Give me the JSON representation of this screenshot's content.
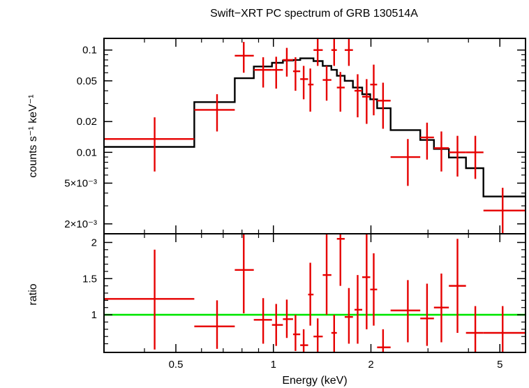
{
  "title": "Swift−XRT PC spectrum of GRB 130514A",
  "xlabel": "Energy (keV)",
  "colors": {
    "data": "#e60000",
    "model": "#000000",
    "unity": "#00e600",
    "frame": "#000000"
  },
  "chart_data": [
    {
      "type": "scatter",
      "panel": "spectrum",
      "xscale": "log",
      "yscale": "log",
      "xlim": [
        0.3,
        6.0
      ],
      "ylim": [
        0.0016,
        0.13
      ],
      "ylabel": "counts s⁻¹ keV⁻¹",
      "yticks": [
        {
          "value": 0.1,
          "label": "0.1"
        },
        {
          "value": 0.05,
          "label": "0.05"
        },
        {
          "value": 0.02,
          "label": "0.02"
        },
        {
          "value": 0.01,
          "label": "0.01"
        },
        {
          "value": 0.005,
          "label": "5×10⁻³"
        },
        {
          "value": 0.002,
          "label": "2×10⁻³"
        }
      ],
      "series": [
        {
          "role": "data",
          "points": [
            {
              "x": 0.43,
              "xlo": 0.3,
              "xhi": 0.57,
              "y": 0.0135,
              "ylo": 0.0065,
              "yhi": 0.022
            },
            {
              "x": 0.67,
              "xlo": 0.57,
              "xhi": 0.76,
              "y": 0.026,
              "ylo": 0.016,
              "yhi": 0.037
            },
            {
              "x": 0.81,
              "xlo": 0.76,
              "xhi": 0.87,
              "y": 0.088,
              "ylo": 0.06,
              "yhi": 0.12
            },
            {
              "x": 0.93,
              "xlo": 0.87,
              "xhi": 0.99,
              "y": 0.064,
              "ylo": 0.043,
              "yhi": 0.085
            },
            {
              "x": 1.02,
              "xlo": 0.99,
              "xhi": 1.07,
              "y": 0.064,
              "ylo": 0.042,
              "yhi": 0.086
            },
            {
              "x": 1.1,
              "xlo": 1.07,
              "xhi": 1.15,
              "y": 0.08,
              "ylo": 0.055,
              "yhi": 0.105
            },
            {
              "x": 1.17,
              "xlo": 1.15,
              "xhi": 1.21,
              "y": 0.062,
              "ylo": 0.04,
              "yhi": 0.085
            },
            {
              "x": 1.24,
              "xlo": 1.21,
              "xhi": 1.28,
              "y": 0.052,
              "ylo": 0.033,
              "yhi": 0.07
            },
            {
              "x": 1.3,
              "xlo": 1.28,
              "xhi": 1.33,
              "y": 0.046,
              "ylo": 0.025,
              "yhi": 0.066
            },
            {
              "x": 1.37,
              "xlo": 1.33,
              "xhi": 1.42,
              "y": 0.1,
              "ylo": 0.07,
              "yhi": 0.13
            },
            {
              "x": 1.46,
              "xlo": 1.42,
              "xhi": 1.51,
              "y": 0.051,
              "ylo": 0.032,
              "yhi": 0.07
            },
            {
              "x": 1.54,
              "xlo": 1.51,
              "xhi": 1.57,
              "y": 0.1,
              "ylo": 0.07,
              "yhi": 0.13
            },
            {
              "x": 1.61,
              "xlo": 1.57,
              "xhi": 1.66,
              "y": 0.043,
              "ylo": 0.025,
              "yhi": 0.061
            },
            {
              "x": 1.71,
              "xlo": 1.66,
              "xhi": 1.76,
              "y": 0.1,
              "ylo": 0.07,
              "yhi": 0.13
            },
            {
              "x": 1.82,
              "xlo": 1.78,
              "xhi": 1.88,
              "y": 0.04,
              "ylo": 0.022,
              "yhi": 0.058
            },
            {
              "x": 1.94,
              "xlo": 1.88,
              "xhi": 1.99,
              "y": 0.035,
              "ylo": 0.019,
              "yhi": 0.052
            },
            {
              "x": 2.04,
              "xlo": 1.99,
              "xhi": 2.09,
              "y": 0.046,
              "ylo": 0.023,
              "yhi": 0.072
            },
            {
              "x": 2.18,
              "xlo": 2.09,
              "xhi": 2.3,
              "y": 0.032,
              "ylo": 0.017,
              "yhi": 0.048
            },
            {
              "x": 2.6,
              "xlo": 2.3,
              "xhi": 2.84,
              "y": 0.009,
              "ylo": 0.0047,
              "yhi": 0.0135
            },
            {
              "x": 2.98,
              "xlo": 2.84,
              "xhi": 3.13,
              "y": 0.014,
              "ylo": 0.0085,
              "yhi": 0.0195
            },
            {
              "x": 3.3,
              "xlo": 3.13,
              "xhi": 3.48,
              "y": 0.011,
              "ylo": 0.0065,
              "yhi": 0.016
            },
            {
              "x": 3.7,
              "xlo": 3.48,
              "xhi": 3.93,
              "y": 0.01,
              "ylo": 0.0058,
              "yhi": 0.0145
            },
            {
              "x": 4.2,
              "xlo": 3.93,
              "xhi": 4.45,
              "y": 0.01,
              "ylo": 0.0055,
              "yhi": 0.0145
            },
            {
              "x": 5.1,
              "xlo": 4.45,
              "xhi": 6.0,
              "y": 0.0027,
              "ylo": 0.0015,
              "yhi": 0.0045
            }
          ]
        },
        {
          "role": "model",
          "steps": [
            {
              "xlo": 0.3,
              "xhi": 0.57,
              "y": 0.0113
            },
            {
              "xlo": 0.57,
              "xhi": 0.76,
              "y": 0.031
            },
            {
              "xlo": 0.76,
              "xhi": 0.87,
              "y": 0.053
            },
            {
              "xlo": 0.87,
              "xhi": 0.99,
              "y": 0.069
            },
            {
              "xlo": 0.99,
              "xhi": 1.07,
              "y": 0.075
            },
            {
              "xlo": 1.07,
              "xhi": 1.15,
              "y": 0.079
            },
            {
              "xlo": 1.15,
              "xhi": 1.21,
              "y": 0.08
            },
            {
              "xlo": 1.21,
              "xhi": 1.33,
              "y": 0.083
            },
            {
              "xlo": 1.33,
              "xhi": 1.42,
              "y": 0.078
            },
            {
              "xlo": 1.42,
              "xhi": 1.51,
              "y": 0.07
            },
            {
              "xlo": 1.51,
              "xhi": 1.57,
              "y": 0.064
            },
            {
              "xlo": 1.57,
              "xhi": 1.66,
              "y": 0.056
            },
            {
              "xlo": 1.66,
              "xhi": 1.76,
              "y": 0.05
            },
            {
              "xlo": 1.76,
              "xhi": 1.88,
              "y": 0.043
            },
            {
              "xlo": 1.88,
              "xhi": 1.99,
              "y": 0.037
            },
            {
              "xlo": 1.99,
              "xhi": 2.09,
              "y": 0.033
            },
            {
              "xlo": 2.09,
              "xhi": 2.3,
              "y": 0.027
            },
            {
              "xlo": 2.3,
              "xhi": 2.84,
              "y": 0.0165
            },
            {
              "xlo": 2.84,
              "xhi": 3.13,
              "y": 0.0132
            },
            {
              "xlo": 3.13,
              "xhi": 3.48,
              "y": 0.0108
            },
            {
              "xlo": 3.48,
              "xhi": 3.93,
              "y": 0.0089
            },
            {
              "xlo": 3.93,
              "xhi": 4.45,
              "y": 0.007
            },
            {
              "xlo": 4.45,
              "xhi": 6.0,
              "y": 0.0037
            }
          ]
        }
      ]
    },
    {
      "type": "scatter",
      "panel": "ratio",
      "xscale": "log",
      "yscale": "linear",
      "xlim": [
        0.3,
        6.0
      ],
      "ylim": [
        0.48,
        2.12
      ],
      "ylabel": "ratio",
      "yticks": [
        {
          "value": 1,
          "label": "1"
        },
        {
          "value": 1.5,
          "label": "1.5"
        },
        {
          "value": 2,
          "label": "2"
        }
      ],
      "xticks": [
        {
          "value": 0.5,
          "label": "0.5"
        },
        {
          "value": 1,
          "label": "1"
        },
        {
          "value": 2,
          "label": "2"
        },
        {
          "value": 5,
          "label": "5"
        }
      ],
      "unity_line": 1,
      "series": [
        {
          "role": "data",
          "points": [
            {
              "x": 0.43,
              "xlo": 0.3,
              "xhi": 0.57,
              "y": 1.22,
              "ylo": 0.52,
              "yhi": 1.9
            },
            {
              "x": 0.67,
              "xlo": 0.57,
              "xhi": 0.76,
              "y": 0.84,
              "ylo": 0.53,
              "yhi": 1.2
            },
            {
              "x": 0.81,
              "xlo": 0.76,
              "xhi": 0.87,
              "y": 1.62,
              "ylo": 1.02,
              "yhi": 2.2
            },
            {
              "x": 0.93,
              "xlo": 0.87,
              "xhi": 0.99,
              "y": 0.93,
              "ylo": 0.6,
              "yhi": 1.23
            },
            {
              "x": 1.02,
              "xlo": 0.99,
              "xhi": 1.07,
              "y": 0.86,
              "ylo": 0.57,
              "yhi": 1.15
            },
            {
              "x": 1.1,
              "xlo": 1.07,
              "xhi": 1.15,
              "y": 0.94,
              "ylo": 0.68,
              "yhi": 1.21
            },
            {
              "x": 1.17,
              "xlo": 1.15,
              "xhi": 1.21,
              "y": 0.73,
              "ylo": 0.5,
              "yhi": 1.0
            },
            {
              "x": 1.24,
              "xlo": 1.21,
              "xhi": 1.28,
              "y": 0.58,
              "ylo": 0.45,
              "yhi": 0.8
            },
            {
              "x": 1.3,
              "xlo": 1.28,
              "xhi": 1.33,
              "y": 1.28,
              "ylo": 0.85,
              "yhi": 1.72
            },
            {
              "x": 1.37,
              "xlo": 1.33,
              "xhi": 1.42,
              "y": 0.7,
              "ylo": 0.47,
              "yhi": 0.95
            },
            {
              "x": 1.46,
              "xlo": 1.42,
              "xhi": 1.51,
              "y": 1.55,
              "ylo": 1.0,
              "yhi": 2.15
            },
            {
              "x": 1.54,
              "xlo": 1.51,
              "xhi": 1.57,
              "y": 0.75,
              "ylo": 0.45,
              "yhi": 1.0
            },
            {
              "x": 1.61,
              "xlo": 1.57,
              "xhi": 1.66,
              "y": 2.05,
              "ylo": 1.4,
              "yhi": 2.2
            },
            {
              "x": 1.71,
              "xlo": 1.66,
              "xhi": 1.76,
              "y": 0.97,
              "ylo": 0.6,
              "yhi": 1.37
            },
            {
              "x": 1.82,
              "xlo": 1.78,
              "xhi": 1.88,
              "y": 1.07,
              "ylo": 0.6,
              "yhi": 1.55
            },
            {
              "x": 1.94,
              "xlo": 1.88,
              "xhi": 1.99,
              "y": 1.52,
              "ylo": 0.8,
              "yhi": 2.2
            },
            {
              "x": 2.04,
              "xlo": 1.99,
              "xhi": 2.09,
              "y": 1.35,
              "ylo": 0.85,
              "yhi": 1.85
            },
            {
              "x": 2.18,
              "xlo": 2.09,
              "xhi": 2.3,
              "y": 0.55,
              "ylo": 0.4,
              "yhi": 0.8
            },
            {
              "x": 2.6,
              "xlo": 2.3,
              "xhi": 2.84,
              "y": 1.06,
              "ylo": 0.62,
              "yhi": 1.48
            },
            {
              "x": 2.98,
              "xlo": 2.84,
              "xhi": 3.13,
              "y": 0.95,
              "ylo": 0.57,
              "yhi": 1.43
            },
            {
              "x": 3.3,
              "xlo": 3.13,
              "xhi": 3.48,
              "y": 1.1,
              "ylo": 0.62,
              "yhi": 1.57
            },
            {
              "x": 3.7,
              "xlo": 3.48,
              "xhi": 3.93,
              "y": 1.4,
              "ylo": 0.75,
              "yhi": 2.05
            },
            {
              "x": 4.2,
              "xlo": 3.93,
              "xhi": 4.45,
              "y": 0.75,
              "ylo": 0.45,
              "yhi": 1.12
            },
            {
              "x": 5.1,
              "xlo": 4.45,
              "xhi": 6.0,
              "y": 0.75,
              "ylo": 0.45,
              "yhi": 1.12
            }
          ]
        }
      ]
    }
  ]
}
